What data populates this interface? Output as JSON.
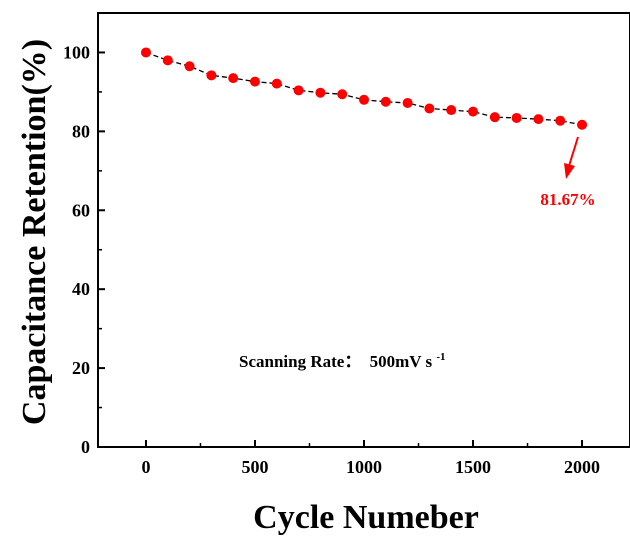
{
  "chart_data": {
    "type": "line",
    "xlabel": "Cycle Numeber",
    "ylabel": "Capacitance Retention(%)",
    "xlim": [
      -220,
      2220
    ],
    "ylim": [
      0,
      110
    ],
    "xticks": [
      0,
      500,
      1000,
      1500,
      2000
    ],
    "xtick_labels": [
      "0",
      "500",
      "1000",
      "1500",
      "2000"
    ],
    "yticks": [
      0,
      20,
      40,
      60,
      80,
      100
    ],
    "ytick_labels": [
      "0",
      "20",
      "40",
      "60",
      "80",
      "100"
    ],
    "grid": false,
    "legend": "none",
    "series": [
      {
        "marker_color": "#ff0000",
        "line_color": "#000000",
        "line_style": "dashed",
        "x": [
          0,
          100,
          200,
          300,
          400,
          500,
          600,
          700,
          800,
          900,
          1000,
          1100,
          1200,
          1300,
          1400,
          1500,
          1600,
          1700,
          1800,
          1900,
          2000
        ],
        "y": [
          100,
          98,
          96.5,
          94.2,
          93.5,
          92.6,
          92.1,
          90.4,
          89.8,
          89.4,
          88.0,
          87.5,
          87.2,
          85.8,
          85.4,
          85.0,
          83.6,
          83.4,
          83.1,
          82.7,
          81.67
        ]
      }
    ],
    "annotations": [
      {
        "text": "81.67%",
        "color": "#ff0000",
        "points_to": [
          2000,
          81.67
        ]
      }
    ],
    "note": {
      "label": "Scanning Rate：",
      "value": "500mV s",
      "superscript": "-1"
    }
  }
}
